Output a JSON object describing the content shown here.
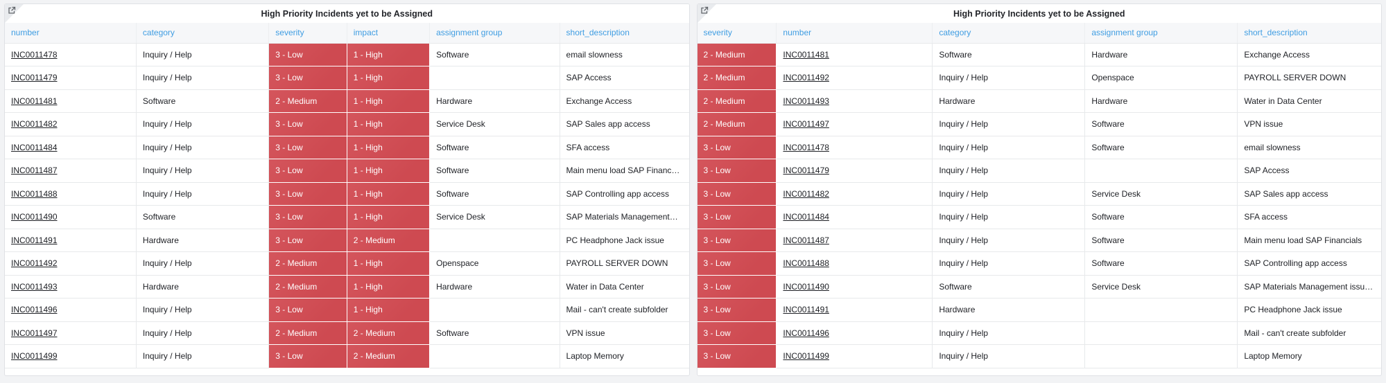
{
  "colors": {
    "severity_red": "#ce4a51",
    "header_link_blue": "#3f9de2",
    "page_background": "#f2f3f5"
  },
  "tables": [
    {
      "title": "High Priority Incidents yet to be Assigned",
      "corner_icon": "external-link-icon",
      "columns": [
        {
          "label": "number",
          "key": "number",
          "style": "link",
          "width": "19.2%"
        },
        {
          "label": "category",
          "key": "category",
          "style": "text",
          "width": "19.4%"
        },
        {
          "label": "severity",
          "key": "severity",
          "style": "red",
          "width": "11.4%"
        },
        {
          "label": "impact",
          "key": "impact",
          "style": "red",
          "width": "12.1%"
        },
        {
          "label": "assignment group",
          "key": "assignment_group",
          "style": "text",
          "width": "19%"
        },
        {
          "label": "short_description",
          "key": "short_description",
          "style": "text",
          "width": "18.9%"
        }
      ],
      "rows": [
        [
          "INC0011478",
          "Inquiry / Help",
          "3 - Low",
          "1 - High",
          "Software",
          "email slowness"
        ],
        [
          "INC0011479",
          "Inquiry / Help",
          "3 - Low",
          "1 - High",
          "",
          "SAP Access"
        ],
        [
          "INC0011481",
          "Software",
          "2 - Medium",
          "1 - High",
          "Hardware",
          "Exchange Access"
        ],
        [
          "INC0011482",
          "Inquiry / Help",
          "3 - Low",
          "1 - High",
          "Service Desk",
          "SAP Sales app access"
        ],
        [
          "INC0011484",
          "Inquiry / Help",
          "3 - Low",
          "1 - High",
          "Software",
          "SFA access"
        ],
        [
          "INC0011487",
          "Inquiry / Help",
          "3 - Low",
          "1 - High",
          "Software",
          "Main menu load SAP Financ…"
        ],
        [
          "INC0011488",
          "Inquiry / Help",
          "3 - Low",
          "1 - High",
          "Software",
          "SAP Controlling app access"
        ],
        [
          "INC0011490",
          "Software",
          "3 - Low",
          "1 - High",
          "Service Desk",
          "SAP Materials Management…"
        ],
        [
          "INC0011491",
          "Hardware",
          "3 - Low",
          "2 - Medium",
          "",
          "PC Headphone Jack issue"
        ],
        [
          "INC0011492",
          "Inquiry / Help",
          "2 - Medium",
          "1 - High",
          "Openspace",
          "PAYROLL SERVER DOWN"
        ],
        [
          "INC0011493",
          "Hardware",
          "2 - Medium",
          "1 - High",
          "Hardware",
          "Water in Data Center"
        ],
        [
          "INC0011496",
          "Inquiry / Help",
          "3 - Low",
          "1 - High",
          "",
          "Mail - can't create subfolder"
        ],
        [
          "INC0011497",
          "Inquiry / Help",
          "2 - Medium",
          "2 - Medium",
          "Software",
          "VPN issue"
        ],
        [
          "INC0011499",
          "Inquiry / Help",
          "3 - Low",
          "2 - Medium",
          "",
          "Laptop Memory"
        ]
      ]
    },
    {
      "title": "High Priority Incidents yet to be Assigned",
      "corner_icon": "external-link-icon",
      "columns": [
        {
          "label": "severity",
          "key": "severity",
          "style": "red",
          "width": "11.6%"
        },
        {
          "label": "number",
          "key": "number",
          "style": "link",
          "width": "22.8%"
        },
        {
          "label": "category",
          "key": "category",
          "style": "text",
          "width": "22.3%"
        },
        {
          "label": "assignment group",
          "key": "assignment_group",
          "style": "text",
          "width": "22.3%"
        },
        {
          "label": "short_description",
          "key": "short_description",
          "style": "text",
          "width": "21%"
        }
      ],
      "rows": [
        [
          "2 - Medium",
          "INC0011481",
          "Software",
          "Hardware",
          "Exchange Access"
        ],
        [
          "2 - Medium",
          "INC0011492",
          "Inquiry / Help",
          "Openspace",
          "PAYROLL SERVER DOWN"
        ],
        [
          "2 - Medium",
          "INC0011493",
          "Hardware",
          "Hardware",
          "Water in Data Center"
        ],
        [
          "2 - Medium",
          "INC0011497",
          "Inquiry / Help",
          "Software",
          "VPN issue"
        ],
        [
          "3 - Low",
          "INC0011478",
          "Inquiry / Help",
          "Software",
          "email slowness"
        ],
        [
          "3 - Low",
          "INC0011479",
          "Inquiry / Help",
          "",
          "SAP Access"
        ],
        [
          "3 - Low",
          "INC0011482",
          "Inquiry / Help",
          "Service Desk",
          "SAP Sales app access"
        ],
        [
          "3 - Low",
          "INC0011484",
          "Inquiry / Help",
          "Software",
          "SFA access"
        ],
        [
          "3 - Low",
          "INC0011487",
          "Inquiry / Help",
          "Software",
          "Main menu load SAP Financials"
        ],
        [
          "3 - Low",
          "INC0011488",
          "Inquiry / Help",
          "Software",
          "SAP Controlling app access"
        ],
        [
          "3 - Low",
          "INC0011490",
          "Software",
          "Service Desk",
          "SAP Materials Management issu…"
        ],
        [
          "3 - Low",
          "INC0011491",
          "Hardware",
          "",
          "PC Headphone Jack issue"
        ],
        [
          "3 - Low",
          "INC0011496",
          "Inquiry / Help",
          "",
          "Mail - can't create subfolder"
        ],
        [
          "3 - Low",
          "INC0011499",
          "Inquiry / Help",
          "",
          "Laptop Memory"
        ]
      ]
    }
  ]
}
